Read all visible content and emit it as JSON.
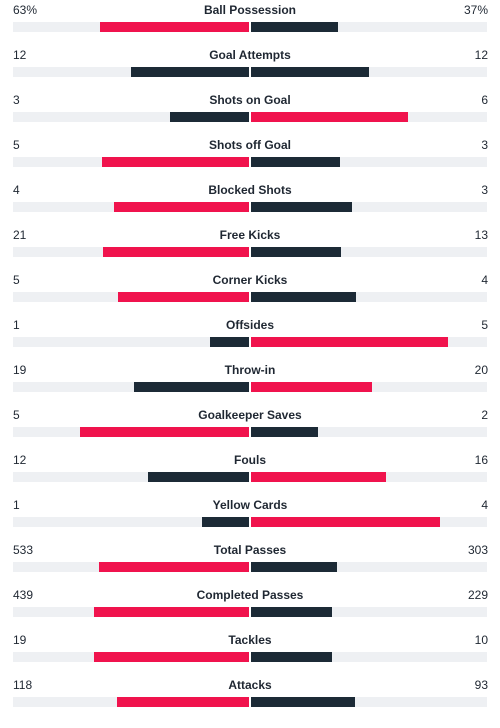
{
  "colors": {
    "lead": "#f0134d",
    "trail": "#1c2a36",
    "track": "#eef0f3"
  },
  "stats": [
    {
      "label": "Ball Possession",
      "home": "63%",
      "away": "37%",
      "home_value": 63,
      "away_value": 37
    },
    {
      "label": "Goal Attempts",
      "home": "12",
      "away": "12",
      "home_value": 12,
      "away_value": 12
    },
    {
      "label": "Shots on Goal",
      "home": "3",
      "away": "6",
      "home_value": 3,
      "away_value": 6
    },
    {
      "label": "Shots off Goal",
      "home": "5",
      "away": "3",
      "home_value": 5,
      "away_value": 3
    },
    {
      "label": "Blocked Shots",
      "home": "4",
      "away": "3",
      "home_value": 4,
      "away_value": 3
    },
    {
      "label": "Free Kicks",
      "home": "21",
      "away": "13",
      "home_value": 21,
      "away_value": 13
    },
    {
      "label": "Corner Kicks",
      "home": "5",
      "away": "4",
      "home_value": 5,
      "away_value": 4
    },
    {
      "label": "Offsides",
      "home": "1",
      "away": "5",
      "home_value": 1,
      "away_value": 5
    },
    {
      "label": "Throw-in",
      "home": "19",
      "away": "20",
      "home_value": 19,
      "away_value": 20
    },
    {
      "label": "Goalkeeper Saves",
      "home": "5",
      "away": "2",
      "home_value": 5,
      "away_value": 2
    },
    {
      "label": "Fouls",
      "home": "12",
      "away": "16",
      "home_value": 12,
      "away_value": 16
    },
    {
      "label": "Yellow Cards",
      "home": "1",
      "away": "4",
      "home_value": 1,
      "away_value": 4
    },
    {
      "label": "Total Passes",
      "home": "533",
      "away": "303",
      "home_value": 533,
      "away_value": 303
    },
    {
      "label": "Completed Passes",
      "home": "439",
      "away": "229",
      "home_value": 439,
      "away_value": 229
    },
    {
      "label": "Tackles",
      "home": "19",
      "away": "10",
      "home_value": 19,
      "away_value": 10
    },
    {
      "label": "Attacks",
      "home": "118",
      "away": "93",
      "home_value": 118,
      "away_value": 93
    }
  ]
}
